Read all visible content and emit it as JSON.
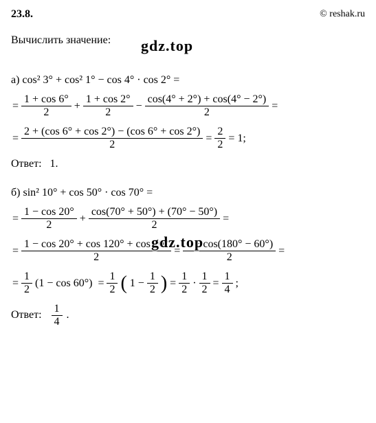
{
  "header": {
    "problem_number": "23.8.",
    "copyright": "© reshak.ru"
  },
  "task": "Вычислить значение:",
  "watermark": "gdz.top",
  "part_a": {
    "label": "а) cos² 3° + cos² 1° − cos 4° · cos 2° =",
    "frac1_num": "1 + cos 6°",
    "frac1_den": "2",
    "frac2_num": "1 + cos 2°",
    "frac2_den": "2",
    "frac3_num": "cos(4° + 2°) + cos(4° − 2°)",
    "frac3_den": "2",
    "frac4_num": "2 + (cos 6° + cos 2°) − (cos 6° + cos 2°)",
    "frac4_den": "2",
    "frac5_num": "2",
    "frac5_den": "2",
    "result": "1;",
    "answer_label": "Ответ:",
    "answer_value": "1."
  },
  "part_b": {
    "label": "б) sin² 10° + cos 50° · cos 70° =",
    "frac1_num": "1 − cos 20°",
    "frac1_den": "2",
    "frac2_num": "cos(70° + 50°) + (70° − 50°)",
    "frac2_den": "2",
    "frac3_num": "1 − cos 20° + cos 120° + cos 20°",
    "frac3_den": "2",
    "frac4_num": "1 + cos(180° − 60°)",
    "frac4_den": "2",
    "frac5_num": "1",
    "frac5_den": "2",
    "half_expr": "(1 − cos 60°)",
    "frac6_num": "1",
    "frac6_den": "2",
    "paren_inner_num": "1",
    "paren_inner_den": "2",
    "frac7a_num": "1",
    "frac7a_den": "2",
    "frac7b_num": "1",
    "frac7b_den": "2",
    "frac8_num": "1",
    "frac8_den": "4",
    "answer_label": "Ответ:",
    "answer_num": "1",
    "answer_den": "4"
  }
}
